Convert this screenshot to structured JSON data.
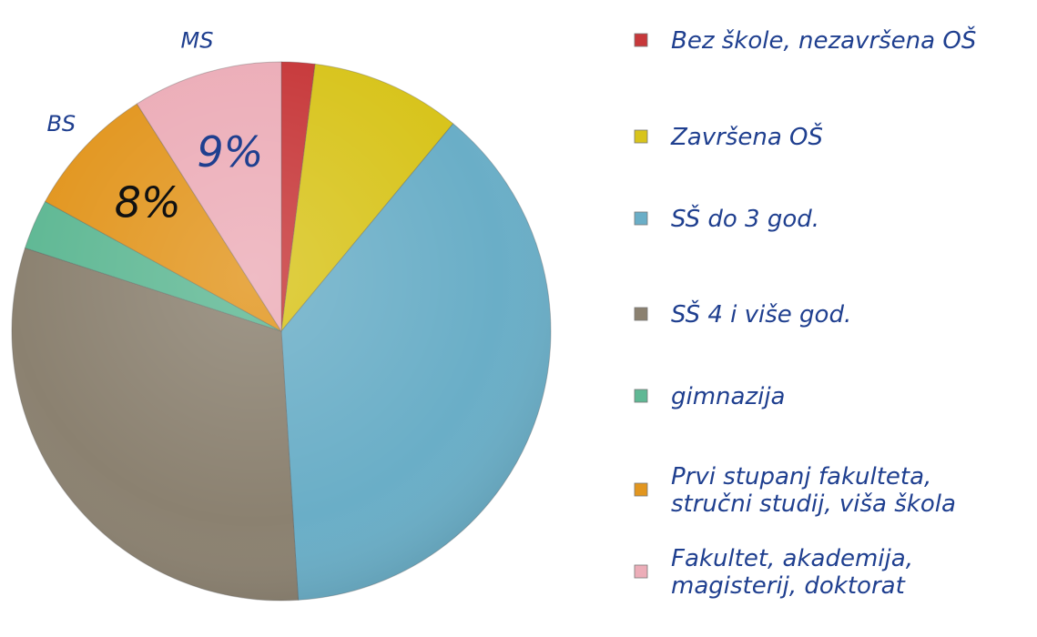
{
  "chart_data": {
    "type": "pie",
    "title": "",
    "slices": [
      {
        "label": "Bez škole, nezavršena OŠ",
        "value": 2,
        "color": "#c7383a"
      },
      {
        "label": "Završena OŠ",
        "value": 9,
        "color": "#d8c41c"
      },
      {
        "label": "SŠ do 3 god.",
        "value": 38,
        "color": "#6aaec7"
      },
      {
        "label": "SŠ 4 i više god.",
        "value": 31,
        "color": "#8b8170"
      },
      {
        "label": "gimnazija",
        "value": 3,
        "color": "#5fb894"
      },
      {
        "label": "Prvi stupanj fakulteta, stručni studij, viša škola",
        "value": 8,
        "color": "#e2961f"
      },
      {
        "label": "Fakultet, akademija, magisterij, doktorat",
        "value": 9,
        "color": "#ecadb8"
      }
    ],
    "legend_position": "right",
    "annotations": [
      {
        "text": "MS",
        "slice": 6
      },
      {
        "text": "BS",
        "slice": 5
      },
      {
        "text": "9%",
        "slice": 6
      },
      {
        "text": "8%",
        "slice": 5
      }
    ]
  }
}
